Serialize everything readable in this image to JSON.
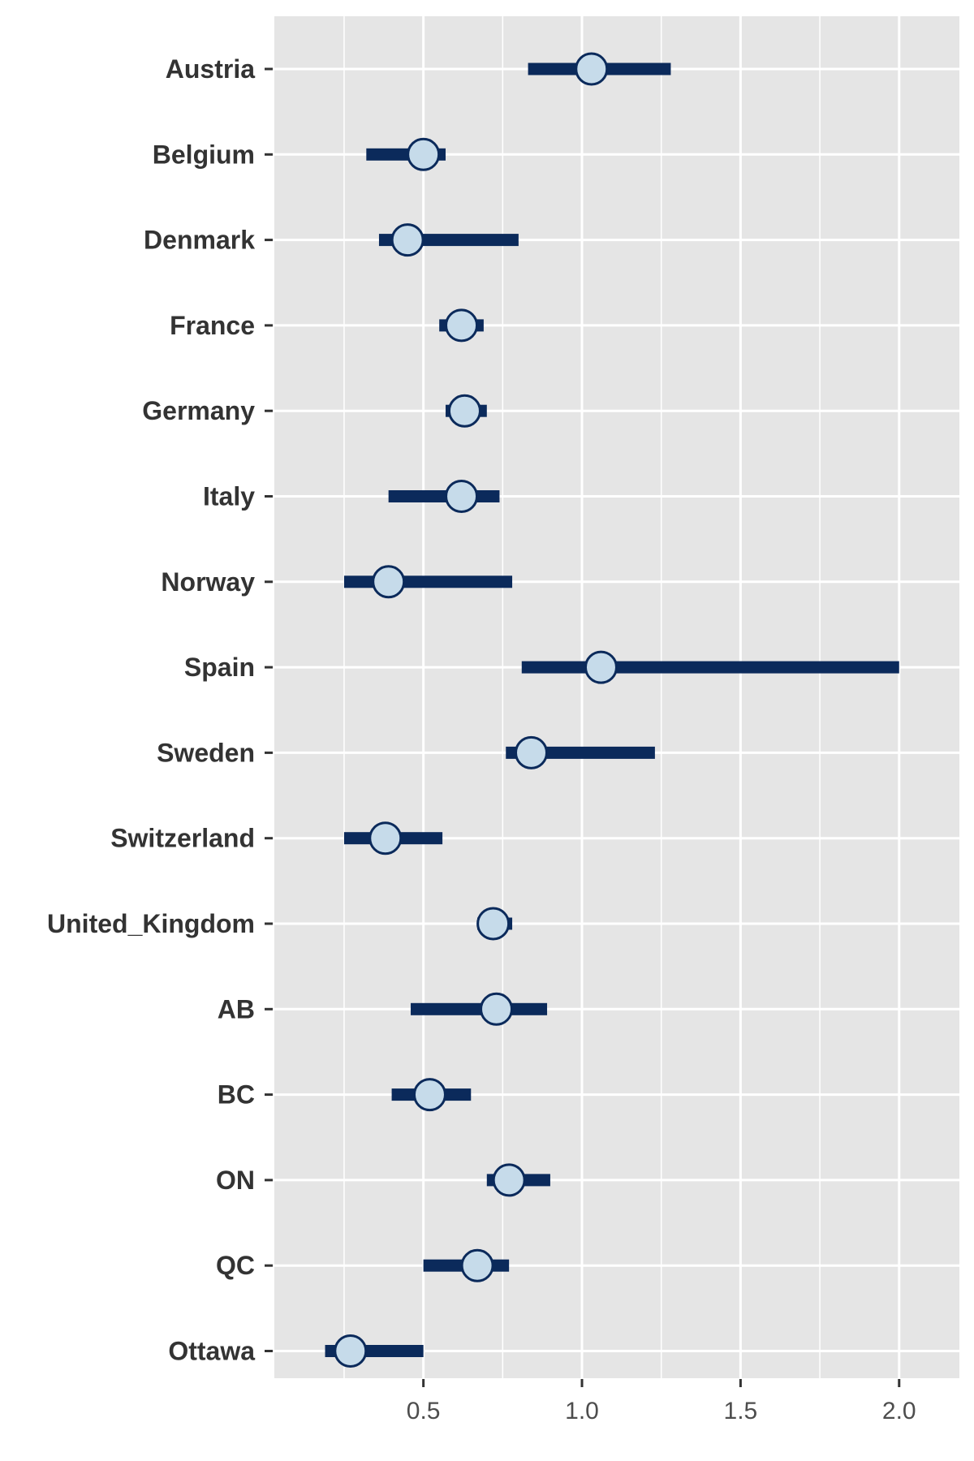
{
  "chart_data": {
    "type": "forest",
    "title": "",
    "xlabel": "",
    "ylabel": "",
    "xlim": [
      0.03,
      2.19
    ],
    "xticks": [
      0.5,
      1.0,
      1.5,
      2.0
    ],
    "xtick_labels": [
      "0.5",
      "1.0",
      "1.5",
      "2.0"
    ],
    "grid": true,
    "colors": {
      "panel": "#e5e5e5",
      "grid": "#ffffff",
      "interval": "#0b2a5b",
      "point_fill": "#c6dbea",
      "point_stroke": "#0b2a5b",
      "text": "#333333"
    },
    "rows": [
      {
        "label": "Austria",
        "estimate": 1.03,
        "lower": 0.83,
        "upper": 1.28
      },
      {
        "label": "Belgium",
        "estimate": 0.5,
        "lower": 0.32,
        "upper": 0.57
      },
      {
        "label": "Denmark",
        "estimate": 0.45,
        "lower": 0.36,
        "upper": 0.8
      },
      {
        "label": "France",
        "estimate": 0.62,
        "lower": 0.55,
        "upper": 0.69
      },
      {
        "label": "Germany",
        "estimate": 0.63,
        "lower": 0.57,
        "upper": 0.7
      },
      {
        "label": "Italy",
        "estimate": 0.62,
        "lower": 0.39,
        "upper": 0.74
      },
      {
        "label": "Norway",
        "estimate": 0.39,
        "lower": 0.25,
        "upper": 0.78
      },
      {
        "label": "Spain",
        "estimate": 1.06,
        "lower": 0.81,
        "upper": 2.0
      },
      {
        "label": "Sweden",
        "estimate": 0.84,
        "lower": 0.76,
        "upper": 1.23
      },
      {
        "label": "Switzerland",
        "estimate": 0.38,
        "lower": 0.25,
        "upper": 0.56
      },
      {
        "label": "United_Kingdom",
        "estimate": 0.72,
        "lower": 0.67,
        "upper": 0.78
      },
      {
        "label": "AB",
        "estimate": 0.73,
        "lower": 0.46,
        "upper": 0.89
      },
      {
        "label": "BC",
        "estimate": 0.52,
        "lower": 0.4,
        "upper": 0.65
      },
      {
        "label": "ON",
        "estimate": 0.77,
        "lower": 0.7,
        "upper": 0.9
      },
      {
        "label": "QC",
        "estimate": 0.67,
        "lower": 0.5,
        "upper": 0.77
      },
      {
        "label": "Ottawa",
        "estimate": 0.27,
        "lower": 0.19,
        "upper": 0.5
      }
    ]
  }
}
